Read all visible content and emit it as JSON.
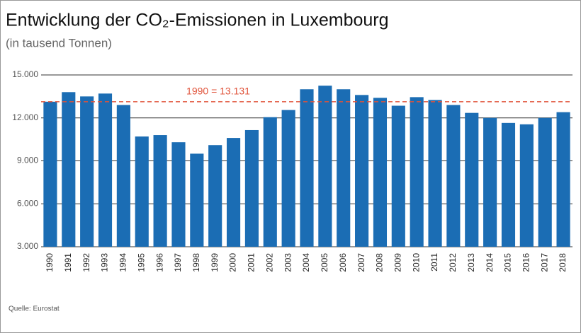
{
  "chart_data": {
    "type": "bar",
    "title": "Entwicklung der CO₂-Emissionen in Luxembourg",
    "subtitle": "(in tausend Tonnen)",
    "source": "Quelle: Eurostat",
    "categories": [
      "1990",
      "1991",
      "1992",
      "1993",
      "1994",
      "1995",
      "1996",
      "1997",
      "1998",
      "1999",
      "2000",
      "2001",
      "2002",
      "2003",
      "2004",
      "2005",
      "2006",
      "2007",
      "2008",
      "2009",
      "2010",
      "2011",
      "2012",
      "2013",
      "2014",
      "2015",
      "2016",
      "2017",
      "2018"
    ],
    "values": [
      13131,
      13800,
      13500,
      13700,
      12900,
      10700,
      10800,
      10300,
      9500,
      10100,
      10600,
      11150,
      12050,
      12550,
      14000,
      14250,
      14000,
      13600,
      13400,
      12850,
      13450,
      13250,
      12900,
      12350,
      12000,
      11650,
      11550,
      12000,
      12400
    ],
    "color": "#1b6db4",
    "ylim": [
      3000,
      15000
    ],
    "yticks": [
      {
        "value": 3000,
        "label": "3.000"
      },
      {
        "value": 6000,
        "label": "6.000"
      },
      {
        "value": 9000,
        "label": "9.000"
      },
      {
        "value": 12000,
        "label": "12.000"
      },
      {
        "value": 15000,
        "label": "15.000"
      }
    ],
    "grid": true,
    "reference_line": {
      "value": 13131,
      "label": "1990 = 13.131",
      "color": "#e0533a"
    }
  }
}
